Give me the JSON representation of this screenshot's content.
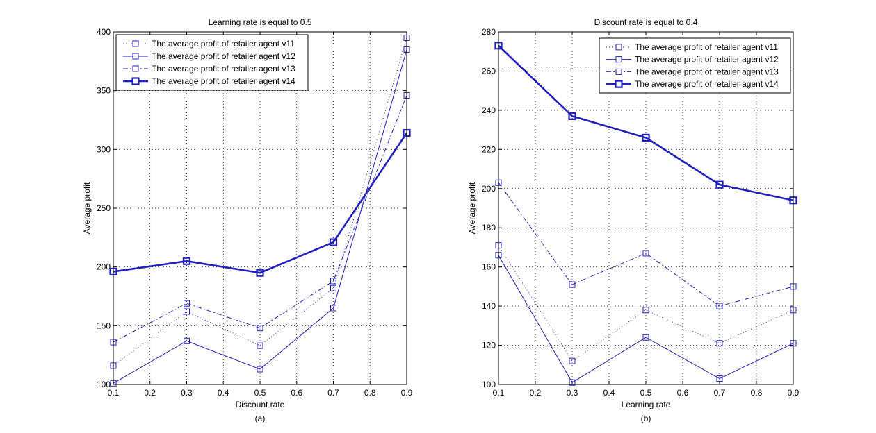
{
  "colors": {
    "line": "#1f1fbf",
    "axis": "#000000",
    "grid": "#000000",
    "background": "#ffffff"
  },
  "chart_data": [
    {
      "type": "line",
      "title": "Learning rate is equal to 0.5",
      "xlabel": "Discount rate",
      "ylabel": "Average profit",
      "caption": "(a)",
      "x": [
        0.1,
        0.3,
        0.5,
        0.7,
        0.9
      ],
      "xlim": [
        0.1,
        0.9
      ],
      "ylim": [
        100,
        400
      ],
      "xticks": [
        0.1,
        0.2,
        0.3,
        0.4,
        0.5,
        0.6,
        0.7,
        0.8,
        0.9
      ],
      "xtick_labels": [
        "0.1",
        "0.2",
        "0.3",
        "0.4",
        "0.5",
        "0.6",
        "0.7",
        "0.8",
        "0.9"
      ],
      "yticks": [
        100,
        150,
        200,
        250,
        300,
        350,
        400
      ],
      "ytick_labels": [
        "100",
        "150",
        "200",
        "250",
        "300",
        "350",
        "400"
      ],
      "grid": true,
      "legend_position": "top-left",
      "series": [
        {
          "name": "The average profit of retailer agent v11",
          "style": "dotted",
          "values": [
            116,
            162,
            133,
            182,
            395
          ]
        },
        {
          "name": "The average profit of retailer agent v12",
          "style": "solid",
          "values": [
            101,
            137,
            113,
            165,
            385
          ]
        },
        {
          "name": "The average profit of retailer agent v13",
          "style": "dashdot",
          "values": [
            136,
            169,
            148,
            188,
            346
          ]
        },
        {
          "name": "The average profit of retailer agent v14",
          "style": "bold",
          "values": [
            196,
            205,
            195,
            221,
            314
          ]
        }
      ]
    },
    {
      "type": "line",
      "title": "Discount rate is equal to 0.4",
      "xlabel": "Learning rate",
      "ylabel": "Average profit",
      "caption": "(b)",
      "x": [
        0.1,
        0.3,
        0.5,
        0.7,
        0.9
      ],
      "xlim": [
        0.1,
        0.9
      ],
      "ylim": [
        100,
        280
      ],
      "xticks": [
        0.1,
        0.2,
        0.3,
        0.4,
        0.5,
        0.6,
        0.7,
        0.8,
        0.9
      ],
      "xtick_labels": [
        "0.1",
        "0.2",
        "0.3",
        "0.4",
        "0.5",
        "0.6",
        "0.7",
        "0.8",
        "0.9"
      ],
      "yticks": [
        100,
        120,
        140,
        160,
        180,
        200,
        220,
        240,
        260,
        280
      ],
      "ytick_labels": [
        "100",
        "120",
        "140",
        "160",
        "180",
        "200",
        "220",
        "240",
        "260",
        "280"
      ],
      "grid": true,
      "legend_position": "top-right",
      "series": [
        {
          "name": "The average profit of retailer agent v11",
          "style": "dotted",
          "values": [
            171,
            112,
            138,
            121,
            138
          ]
        },
        {
          "name": "The average profit of retailer agent v12",
          "style": "solid",
          "values": [
            166,
            101,
            124,
            103,
            121
          ]
        },
        {
          "name": "The average profit of retailer agent v13",
          "style": "dashdot",
          "values": [
            203,
            151,
            167,
            140,
            150
          ]
        },
        {
          "name": "The average profit of retailer agent v14",
          "style": "bold",
          "values": [
            273,
            237,
            226,
            202,
            194
          ]
        }
      ]
    }
  ]
}
